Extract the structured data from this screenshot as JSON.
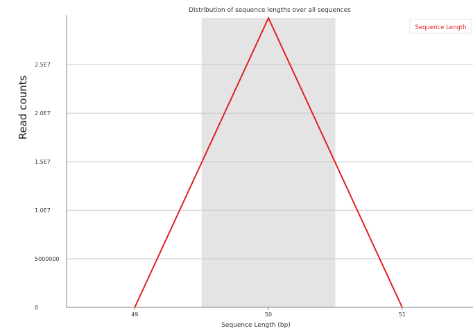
{
  "chart_data": {
    "type": "line",
    "title": "Distribution of sequence lengths over all sequences",
    "xlabel": "Sequence Length (bp)",
    "ylabel": "Read counts",
    "x": [
      49,
      50,
      51
    ],
    "x_tick_labels": [
      "49",
      "50",
      "51"
    ],
    "y_ticks": [
      0,
      5000000,
      10000000,
      15000000,
      20000000,
      25000000
    ],
    "y_tick_labels": [
      "0",
      "5000000",
      "1.0E7",
      "1.5E7",
      "2.0E7",
      "2.5E7"
    ],
    "ylim": [
      0,
      29800000
    ],
    "xlim": [
      48.49,
      51.53
    ],
    "series": [
      {
        "name": "Sequence Length",
        "values": [
          0,
          29800000,
          0
        ],
        "color": "#e02020"
      }
    ],
    "highlight_band": {
      "x_from": 49.5,
      "x_to": 50.5,
      "color": "#e4e4e4"
    },
    "grid": "horizontal",
    "legend_position": "top-right",
    "colors": {
      "axis": "#808080",
      "grid": "#c8c8c8",
      "band": "#e4e4e4",
      "line": "#e02020",
      "text": "#333333"
    }
  }
}
